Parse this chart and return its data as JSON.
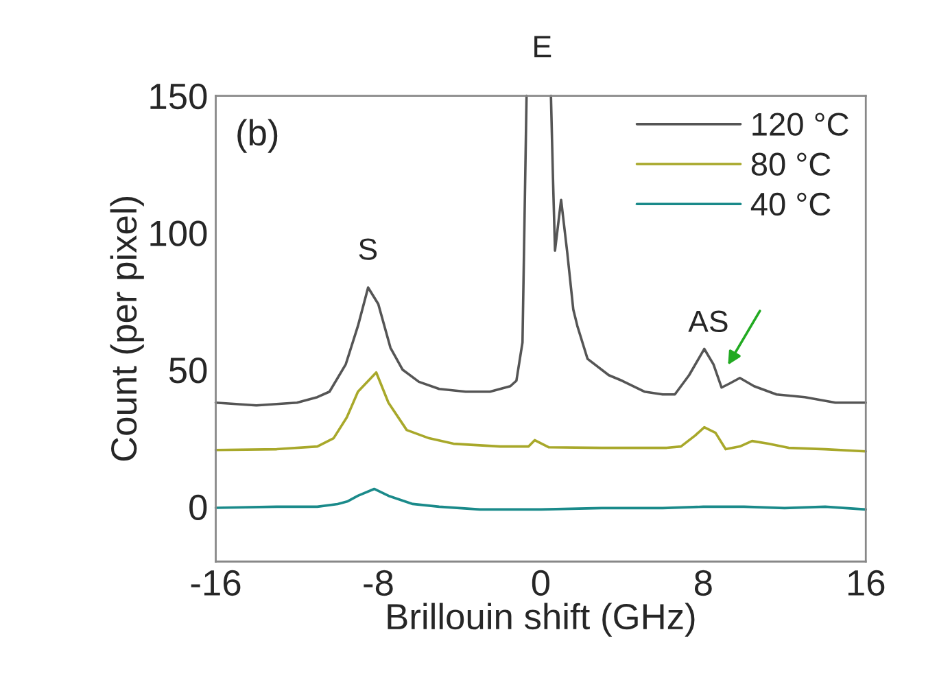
{
  "chart_data": {
    "type": "line",
    "xlabel": "Brillouin shift (GHz)",
    "ylabel": "Count (per pixel)",
    "xlim": [
      -16,
      16
    ],
    "xticks": [
      -16,
      -8,
      0,
      8,
      16
    ],
    "ylim": [
      -20,
      150
    ],
    "yticks": [
      0,
      50,
      100,
      150
    ],
    "grid": false,
    "legend": "top right",
    "marker": "none",
    "line_style": "solid",
    "series": [
      {
        "name": "120 °C",
        "color": "#555555",
        "x": [
          -16,
          -14,
          -12,
          -11,
          -10.4,
          -9.6,
          -9,
          -8.5,
          -8,
          -7.4,
          -6.8,
          -6,
          -5,
          -3.7,
          -2.5,
          -1.5,
          -1.2,
          -0.9,
          -0.7,
          0,
          0.5,
          0.6,
          0.7,
          1.0,
          1.3,
          1.6,
          1.8,
          2.3,
          3.35,
          4,
          5.1,
          6,
          6.6,
          7.3,
          8.05,
          8.5,
          8.9,
          9.3,
          9.8,
          10.5,
          11.6,
          13,
          14.5,
          16
        ],
        "values": [
          38,
          37,
          38,
          40,
          42,
          52,
          66,
          80,
          74,
          58,
          50,
          45.6,
          43,
          42,
          42,
          44,
          46,
          60,
          150,
          null,
          150,
          120,
          93.5,
          112,
          93,
          72,
          66,
          54,
          48,
          46,
          42,
          41,
          41,
          48,
          57.6,
          52,
          43.5,
          45,
          47,
          44,
          41,
          40,
          38,
          38
        ]
      },
      {
        "name": "80 °C",
        "color": "#a8a82a",
        "x": [
          -16,
          -13,
          -11,
          -10.2,
          -9.55,
          -9,
          -8.1,
          -7.5,
          -6.6,
          -5.5,
          -4.3,
          -2,
          -0.6,
          -0.3,
          0.4,
          3,
          6.2,
          6.9,
          7.6,
          8.05,
          8.6,
          9.1,
          9.8,
          10.4,
          11.2,
          12.2,
          14,
          16
        ],
        "values": [
          20.7,
          21,
          22,
          25,
          32.6,
          42,
          49,
          38,
          28,
          25,
          23,
          22,
          22,
          24.3,
          21.7,
          21.5,
          21.5,
          22,
          26,
          29,
          27,
          21,
          22,
          24,
          23,
          21.5,
          21,
          20.2
        ]
      },
      {
        "name": "40 °C",
        "color": "#1a8a8a",
        "x": [
          -16,
          -13,
          -11,
          -10,
          -9.5,
          -9,
          -8.2,
          -7.5,
          -6.3,
          -5,
          -3,
          0,
          3,
          6,
          8,
          10,
          12,
          14,
          16
        ],
        "values": [
          -0.4,
          0,
          0,
          1,
          2,
          4,
          6.5,
          4,
          1,
          0,
          -1,
          -1,
          -0.5,
          -0.5,
          0,
          0,
          -0.5,
          0,
          -1
        ]
      }
    ],
    "annotations": [
      "(b)",
      "S",
      "E",
      "AS"
    ]
  }
}
